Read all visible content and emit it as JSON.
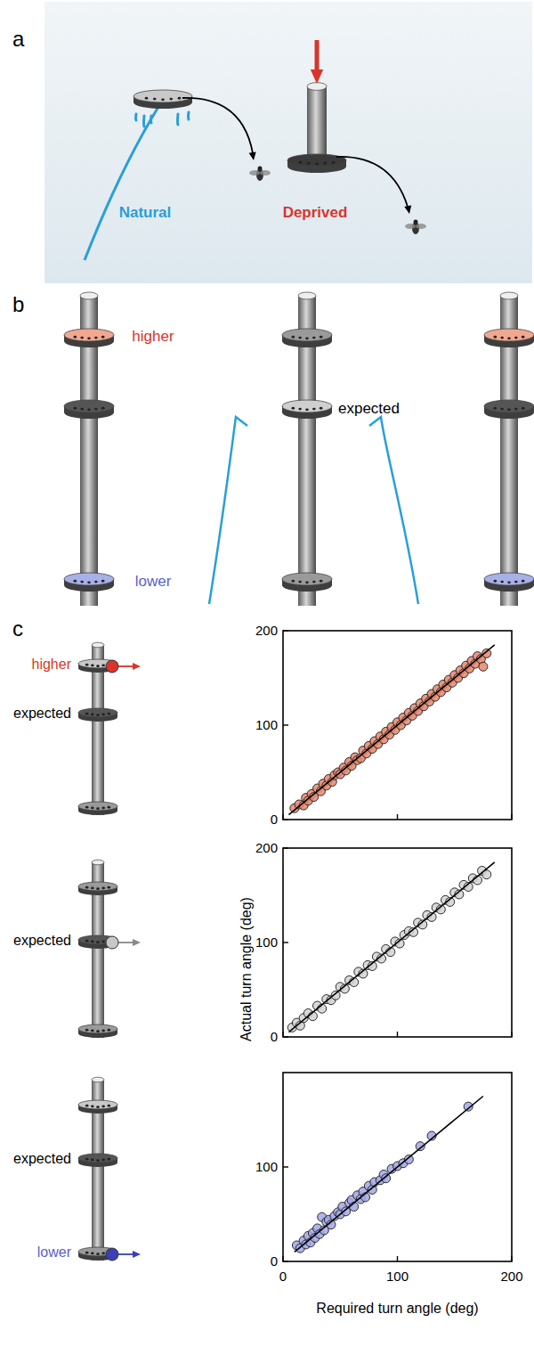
{
  "panels": {
    "a": {
      "letter": "a",
      "natural": "Natural",
      "deprived": "Deprived"
    },
    "b": {
      "letter": "b",
      "higher": "higher",
      "lower": "lower",
      "expected": "expected"
    },
    "c": {
      "letter": "c",
      "rows": [
        {
          "higher": "higher",
          "expected": "expected"
        },
        {
          "expected": "expected"
        },
        {
          "expected": "expected",
          "lower": "lower"
        }
      ]
    }
  },
  "chart_data": [
    {
      "type": "scatter",
      "xlim": [
        0,
        200
      ],
      "ylim": [
        0,
        200
      ],
      "xticks": [
        0,
        100,
        200
      ],
      "yticks": [
        0,
        100,
        200
      ],
      "tick_labels": "y",
      "series": [
        {
          "x": [
            10,
            14,
            18,
            20,
            22,
            25,
            27,
            30,
            33,
            35,
            38,
            40,
            43,
            45,
            48,
            50,
            53,
            55,
            58,
            60,
            63,
            65,
            68,
            70,
            73,
            75,
            78,
            80,
            83,
            85,
            88,
            90,
            93,
            95,
            98,
            100,
            103,
            105,
            108,
            110,
            113,
            115,
            118,
            120,
            123,
            125,
            128,
            130,
            133,
            135,
            138,
            140,
            143,
            145,
            148,
            150,
            153,
            155,
            158,
            160,
            163,
            165,
            168,
            170,
            173,
            175,
            178
          ],
          "values": [
            12,
            16,
            15,
            23,
            20,
            27,
            24,
            33,
            30,
            38,
            36,
            43,
            40,
            47,
            50,
            48,
            55,
            52,
            61,
            57,
            66,
            63,
            65,
            73,
            70,
            78,
            75,
            83,
            80,
            88,
            85,
            93,
            90,
            98,
            95,
            103,
            100,
            108,
            105,
            113,
            110,
            118,
            115,
            123,
            120,
            128,
            125,
            133,
            130,
            138,
            135,
            143,
            140,
            148,
            145,
            153,
            150,
            158,
            155,
            163,
            160,
            168,
            165,
            173,
            170,
            162,
            176
          ],
          "color": "#e8866c",
          "marker": "circle"
        },
        {
          "type": "line",
          "x": [
            5,
            185
          ],
          "values": [
            5,
            185
          ],
          "color": "#000000",
          "line_style": "solid"
        }
      ]
    },
    {
      "type": "scatter",
      "xlim": [
        0,
        200
      ],
      "ylim": [
        0,
        200
      ],
      "xticks": [
        0,
        100,
        200
      ],
      "yticks": [
        0,
        100,
        200
      ],
      "tick_labels": "y",
      "y_label": "Actual turn angle (deg)",
      "series": [
        {
          "x": [
            8,
            12,
            15,
            18,
            22,
            26,
            30,
            34,
            38,
            42,
            46,
            50,
            54,
            58,
            62,
            66,
            70,
            74,
            78,
            82,
            86,
            90,
            94,
            98,
            102,
            106,
            110,
            114,
            118,
            122,
            126,
            130,
            134,
            138,
            142,
            146,
            150,
            154,
            158,
            162,
            166,
            170,
            174,
            178
          ],
          "values": [
            10,
            15,
            12,
            20,
            25,
            22,
            33,
            30,
            40,
            39,
            44,
            53,
            51,
            60,
            58,
            69,
            67,
            76,
            75,
            85,
            83,
            93,
            90,
            101,
            99,
            108,
            112,
            111,
            121,
            119,
            129,
            127,
            137,
            135,
            145,
            143,
            153,
            151,
            161,
            159,
            168,
            166,
            176,
            172
          ],
          "color": "#d4d4d4",
          "marker": "circle"
        },
        {
          "type": "line",
          "x": [
            5,
            185
          ],
          "values": [
            5,
            185
          ],
          "color": "#000000",
          "line_style": "solid"
        }
      ]
    },
    {
      "type": "scatter",
      "xlim": [
        0,
        200
      ],
      "ylim": [
        0,
        200
      ],
      "xticks": [
        0,
        100,
        200
      ],
      "yticks": [
        0,
        100
      ],
      "tick_labels": true,
      "x_label": "Required turn angle (deg)",
      "series": [
        {
          "x": [
            12,
            15,
            18,
            20,
            22,
            24,
            26,
            28,
            30,
            32,
            34,
            36,
            38,
            40,
            42,
            45,
            48,
            50,
            52,
            55,
            58,
            60,
            62,
            65,
            68,
            70,
            72,
            75,
            78,
            80,
            85,
            88,
            90,
            95,
            100,
            105,
            110,
            120,
            130,
            162
          ],
          "values": [
            17,
            14,
            22,
            18,
            27,
            20,
            30,
            25,
            35,
            29,
            47,
            33,
            42,
            44,
            39,
            48,
            52,
            50,
            58,
            53,
            62,
            65,
            58,
            70,
            66,
            74,
            68,
            80,
            76,
            84,
            86,
            92,
            88,
            98,
            101,
            104,
            108,
            122,
            133,
            164
          ],
          "color": "#a3a7e6",
          "marker": "circle"
        },
        {
          "type": "line",
          "x": [
            10,
            175
          ],
          "values": [
            10,
            175
          ],
          "color": "#000000",
          "line_style": "solid"
        }
      ]
    }
  ]
}
